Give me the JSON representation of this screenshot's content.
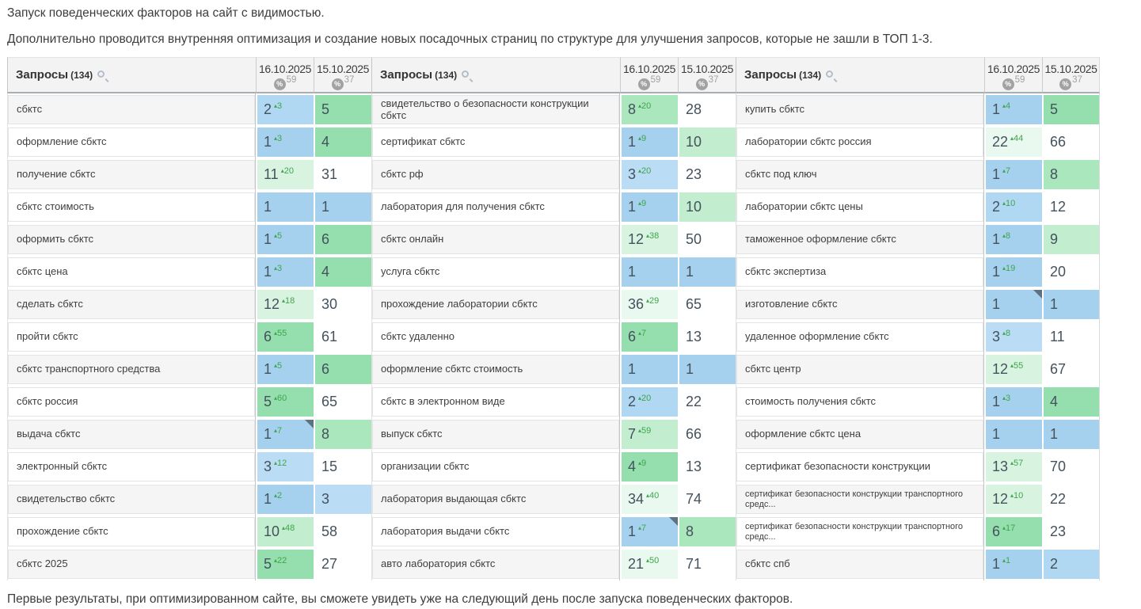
{
  "texts": {
    "line1": "Запуск поведенческих факторов на сайт с видимостью.",
    "line2": "Дополнительно проводится внутренняя оптимизация и создание новых посадочных страниц по структуре для улучшения запросов, которые не зашли в ТОП 1-3.",
    "footer": "Первые результаты, при оптимизированном сайте, вы сможете увидеть уже на следующий день после запуска поведенческих факторов."
  },
  "table": {
    "queries_label": "Запросы",
    "queries_count": "(134)",
    "date_columns": [
      {
        "date": "16.10.2025",
        "visibility": "59"
      },
      {
        "date": "15.10.2025",
        "visibility": "37"
      }
    ],
    "icons": {
      "search_icon": "magnifier",
      "percent_icon": "%",
      "delta_up_icon": "▴",
      "note_marker_icon": "corner-triangle"
    },
    "legend_colors": {
      "top1_blue": "#a5d1ef",
      "top2_blue": "#b0d8f2",
      "top3_blue": "#badcf4",
      "green_pos4_6": "#94dfad",
      "green_pos7_8": "#abe7bd",
      "green_pos9_10": "#c2eecf",
      "green_pos11_13": "#d8f4e1",
      "green_pos14_plus": "#e9f9ef",
      "no_highlight": "#ffffff",
      "delta_text": "#3fa54d",
      "position_text": "#44525d"
    },
    "groups": [
      [
        {
          "q": "сбктс",
          "v1": {
            "n": "2",
            "d": "3",
            "c": "b2"
          },
          "v2": {
            "n": "5",
            "c": "g1"
          }
        },
        {
          "q": "оформление сбктс",
          "v1": {
            "n": "1",
            "d": "3",
            "c": "b1"
          },
          "v2": {
            "n": "4",
            "c": "g1"
          }
        },
        {
          "q": "получение сбктс",
          "v1": {
            "n": "11",
            "d": "20",
            "c": "g4"
          },
          "v2": {
            "n": "31",
            "c": "w"
          }
        },
        {
          "q": "сбктс стоимость",
          "v1": {
            "n": "1",
            "c": "b1"
          },
          "v2": {
            "n": "1",
            "c": "b1"
          }
        },
        {
          "q": "оформить сбктс",
          "v1": {
            "n": "1",
            "d": "5",
            "c": "b1"
          },
          "v2": {
            "n": "6",
            "c": "g1"
          }
        },
        {
          "q": "сбктс цена",
          "v1": {
            "n": "1",
            "d": "3",
            "c": "b1"
          },
          "v2": {
            "n": "4",
            "c": "g1"
          }
        },
        {
          "q": "сделать сбктс",
          "v1": {
            "n": "12",
            "d": "18",
            "c": "g4"
          },
          "v2": {
            "n": "30",
            "c": "w"
          }
        },
        {
          "q": "пройти сбктс",
          "v1": {
            "n": "6",
            "d": "55",
            "c": "g1"
          },
          "v2": {
            "n": "61",
            "c": "w"
          }
        },
        {
          "q": "сбктс транспортного средства",
          "v1": {
            "n": "1",
            "d": "5",
            "c": "b1"
          },
          "v2": {
            "n": "6",
            "c": "g1"
          }
        },
        {
          "q": "сбктс россия",
          "v1": {
            "n": "5",
            "d": "60",
            "c": "g1"
          },
          "v2": {
            "n": "65",
            "c": "w"
          }
        },
        {
          "q": "выдача сбктс",
          "v1": {
            "n": "1",
            "d": "7",
            "c": "b1",
            "m": true
          },
          "v2": {
            "n": "8",
            "c": "g2"
          }
        },
        {
          "q": "электронный сбктс",
          "v1": {
            "n": "3",
            "d": "12",
            "c": "b3"
          },
          "v2": {
            "n": "15",
            "c": "w"
          }
        },
        {
          "q": "свидетельство сбктс",
          "v1": {
            "n": "1",
            "d": "2",
            "c": "b1"
          },
          "v2": {
            "n": "3",
            "c": "b3"
          }
        },
        {
          "q": "прохождение сбктс",
          "v1": {
            "n": "10",
            "d": "48",
            "c": "g3"
          },
          "v2": {
            "n": "58",
            "c": "w"
          }
        },
        {
          "q": "сбктс 2025",
          "v1": {
            "n": "5",
            "d": "22",
            "c": "g1"
          },
          "v2": {
            "n": "27",
            "c": "w"
          }
        }
      ],
      [
        {
          "q": "свидетельство о безопасности конструкции сбктс",
          "v1": {
            "n": "8",
            "d": "20",
            "c": "g2"
          },
          "v2": {
            "n": "28",
            "c": "w"
          }
        },
        {
          "q": "сертификат сбктс",
          "v1": {
            "n": "1",
            "d": "9",
            "c": "b1"
          },
          "v2": {
            "n": "10",
            "c": "g3"
          }
        },
        {
          "q": "сбктс рф",
          "v1": {
            "n": "3",
            "d": "20",
            "c": "b3"
          },
          "v2": {
            "n": "23",
            "c": "w"
          }
        },
        {
          "q": "лаборатория для получения сбктс",
          "v1": {
            "n": "1",
            "d": "9",
            "c": "b1"
          },
          "v2": {
            "n": "10",
            "c": "g3"
          }
        },
        {
          "q": "сбктс онлайн",
          "v1": {
            "n": "12",
            "d": "38",
            "c": "g4"
          },
          "v2": {
            "n": "50",
            "c": "w"
          }
        },
        {
          "q": "услуга сбктс",
          "v1": {
            "n": "1",
            "c": "b1"
          },
          "v2": {
            "n": "1",
            "c": "b1"
          }
        },
        {
          "q": "прохождение лаборатории сбктс",
          "v1": {
            "n": "36",
            "d": "29",
            "c": "g5"
          },
          "v2": {
            "n": "65",
            "c": "w"
          }
        },
        {
          "q": "сбктс удаленно",
          "v1": {
            "n": "6",
            "d": "7",
            "c": "g1"
          },
          "v2": {
            "n": "13",
            "c": "w"
          }
        },
        {
          "q": "оформление сбктс стоимость",
          "v1": {
            "n": "1",
            "c": "b1"
          },
          "v2": {
            "n": "1",
            "c": "b1"
          }
        },
        {
          "q": "сбктс в электронном виде",
          "v1": {
            "n": "2",
            "d": "20",
            "c": "b2"
          },
          "v2": {
            "n": "22",
            "c": "w"
          }
        },
        {
          "q": "выпуск сбктс",
          "v1": {
            "n": "7",
            "d": "59",
            "c": "g3"
          },
          "v2": {
            "n": "66",
            "c": "w"
          }
        },
        {
          "q": "организации сбктс",
          "v1": {
            "n": "4",
            "d": "9",
            "c": "g1"
          },
          "v2": {
            "n": "13",
            "c": "w"
          }
        },
        {
          "q": "лаборатория выдающая сбктс",
          "v1": {
            "n": "34",
            "d": "40",
            "c": "g5"
          },
          "v2": {
            "n": "74",
            "c": "w"
          }
        },
        {
          "q": "лаборатория выдачи сбктс",
          "v1": {
            "n": "1",
            "d": "7",
            "c": "b1",
            "m": true
          },
          "v2": {
            "n": "8",
            "c": "g2"
          }
        },
        {
          "q": "авто лаборатория сбктс",
          "v1": {
            "n": "21",
            "d": "50",
            "c": "g5"
          },
          "v2": {
            "n": "71",
            "c": "w"
          }
        }
      ],
      [
        {
          "q": "купить сбктс",
          "v1": {
            "n": "1",
            "d": "4",
            "c": "b1"
          },
          "v2": {
            "n": "5",
            "c": "g1"
          }
        },
        {
          "q": "лаборатории сбктс россия",
          "v1": {
            "n": "22",
            "d": "44",
            "c": "g5"
          },
          "v2": {
            "n": "66",
            "c": "w"
          }
        },
        {
          "q": "сбктс под ключ",
          "v1": {
            "n": "1",
            "d": "7",
            "c": "b1"
          },
          "v2": {
            "n": "8",
            "c": "g2"
          }
        },
        {
          "q": "лаборатории сбктс цены",
          "v1": {
            "n": "2",
            "d": "10",
            "c": "b2"
          },
          "v2": {
            "n": "12",
            "c": "w"
          }
        },
        {
          "q": "таможенное оформление сбктс",
          "v1": {
            "n": "1",
            "d": "8",
            "c": "b1"
          },
          "v2": {
            "n": "9",
            "c": "g3"
          }
        },
        {
          "q": "сбктс экспертиза",
          "v1": {
            "n": "1",
            "d": "19",
            "c": "b1"
          },
          "v2": {
            "n": "20",
            "c": "w"
          }
        },
        {
          "q": "изготовление сбктс",
          "v1": {
            "n": "1",
            "c": "b1",
            "m": true
          },
          "v2": {
            "n": "1",
            "c": "b1"
          }
        },
        {
          "q": "удаленное оформление сбктс",
          "v1": {
            "n": "3",
            "d": "8",
            "c": "b3"
          },
          "v2": {
            "n": "11",
            "c": "w"
          }
        },
        {
          "q": "сбктс центр",
          "v1": {
            "n": "12",
            "d": "55",
            "c": "g4"
          },
          "v2": {
            "n": "67",
            "c": "w"
          }
        },
        {
          "q": "стоимость получения сбктс",
          "v1": {
            "n": "1",
            "d": "3",
            "c": "b1"
          },
          "v2": {
            "n": "4",
            "c": "g1"
          }
        },
        {
          "q": "оформление сбктс цена",
          "v1": {
            "n": "1",
            "c": "b1"
          },
          "v2": {
            "n": "1",
            "c": "b1"
          }
        },
        {
          "q": "сертификат безопасности конструкции",
          "v1": {
            "n": "13",
            "d": "57",
            "c": "g4"
          },
          "v2": {
            "n": "70",
            "c": "w"
          }
        },
        {
          "q": "сертификат безопасности конструкции транспортного средс...",
          "v1": {
            "n": "12",
            "d": "10",
            "c": "g4"
          },
          "v2": {
            "n": "22",
            "c": "w"
          }
        },
        {
          "q": "сертификат безопасности конструкции транспортного средс...",
          "v1": {
            "n": "6",
            "d": "17",
            "c": "g1"
          },
          "v2": {
            "n": "23",
            "c": "w"
          }
        },
        {
          "q": "сбктс спб",
          "v1": {
            "n": "1",
            "d": "1",
            "c": "b1"
          },
          "v2": {
            "n": "2",
            "c": "b2"
          }
        }
      ]
    ]
  }
}
